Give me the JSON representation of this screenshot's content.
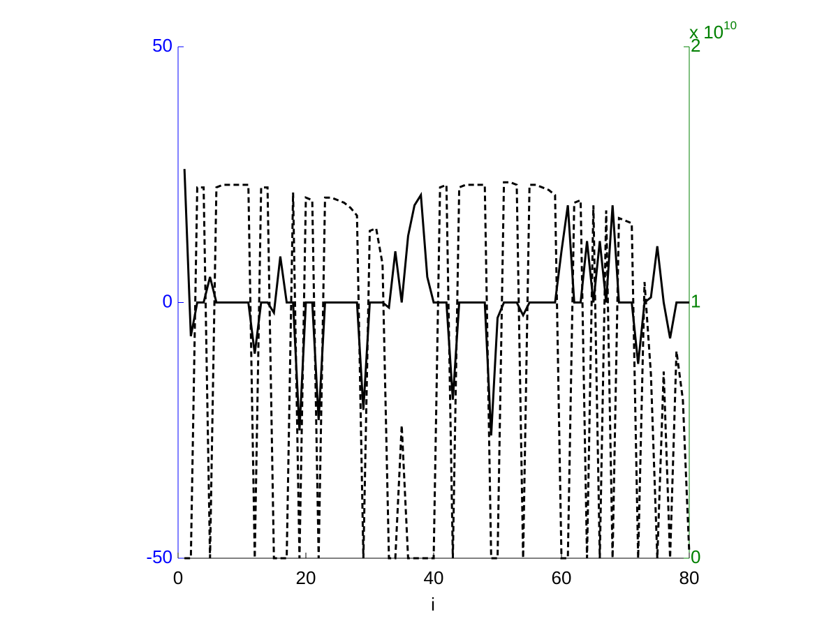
{
  "chart_data": {
    "type": "line",
    "x_label": "i",
    "x": [
      1,
      2,
      3,
      4,
      5,
      6,
      7,
      8,
      9,
      10,
      11,
      12,
      13,
      14,
      15,
      16,
      17,
      18,
      19,
      20,
      21,
      22,
      23,
      24,
      25,
      26,
      27,
      28,
      29,
      30,
      31,
      32,
      33,
      34,
      35,
      36,
      37,
      38,
      39,
      40,
      41,
      42,
      43,
      44,
      45,
      46,
      47,
      48,
      49,
      50,
      51,
      52,
      53,
      54,
      55,
      56,
      57,
      58,
      59,
      60,
      61,
      62,
      63,
      64,
      65,
      66,
      67,
      68,
      69,
      70,
      71,
      72,
      73,
      74,
      75,
      76,
      77,
      78,
      79,
      80
    ],
    "xlim": [
      0,
      80
    ],
    "xticks": [
      0,
      20,
      40,
      60,
      80
    ],
    "ylim": [
      -50,
      50
    ],
    "yticks": [
      -50,
      0,
      50
    ],
    "y_color": "#0000ff",
    "y2lim": [
      0,
      2
    ],
    "y2ticks": [
      0,
      1,
      2
    ],
    "y2_color": "#008000",
    "y2_scale_label": {
      "base": "x 10",
      "exponent": "10"
    },
    "series": [
      {
        "color": "#000000",
        "dashed": false,
        "values": [
          26.1,
          -6.6,
          0,
          0,
          5,
          0,
          0,
          0,
          0,
          0,
          0,
          -10,
          0,
          0,
          -2,
          9,
          0,
          0,
          -25,
          0,
          0,
          -23,
          0,
          0,
          0,
          0,
          0,
          0,
          -21,
          0,
          0,
          0,
          -1,
          10,
          0,
          13,
          19,
          21,
          5,
          0,
          0,
          0,
          -19,
          0,
          0,
          0,
          0,
          0,
          -26,
          -3,
          0,
          0,
          0,
          -2.5,
          0,
          0,
          0,
          0,
          0,
          10,
          19,
          0,
          0,
          12,
          0,
          12,
          0,
          19,
          0,
          0,
          0,
          -12,
          0,
          1,
          11,
          0,
          -7,
          0,
          0,
          0
        ]
      },
      {
        "color": "#000000",
        "dashed": true,
        "axis": "y2",
        "values": [
          0,
          0,
          1.45,
          1.45,
          0,
          1.45,
          1.46,
          1.46,
          1.46,
          1.46,
          1.46,
          0,
          1.45,
          1.45,
          0,
          0,
          0,
          1.43,
          0,
          1.41,
          1.4,
          0,
          1.41,
          1.41,
          1.4,
          1.39,
          1.37,
          1.34,
          0,
          1.28,
          1.29,
          1.15,
          0,
          0,
          0.52,
          0,
          0,
          0,
          0,
          0,
          1.45,
          1.46,
          0,
          1.45,
          1.46,
          1.46,
          1.46,
          1.46,
          0,
          0,
          1.47,
          1.47,
          1.46,
          0,
          1.46,
          1.46,
          1.45,
          1.44,
          1.42,
          0,
          0,
          1.39,
          1.4,
          0,
          1.38,
          0,
          1.36,
          0,
          1.33,
          1.32,
          1.31,
          0,
          1.08,
          0.72,
          0,
          0.73,
          0,
          0.81,
          0.62,
          0.02
        ]
      }
    ]
  }
}
